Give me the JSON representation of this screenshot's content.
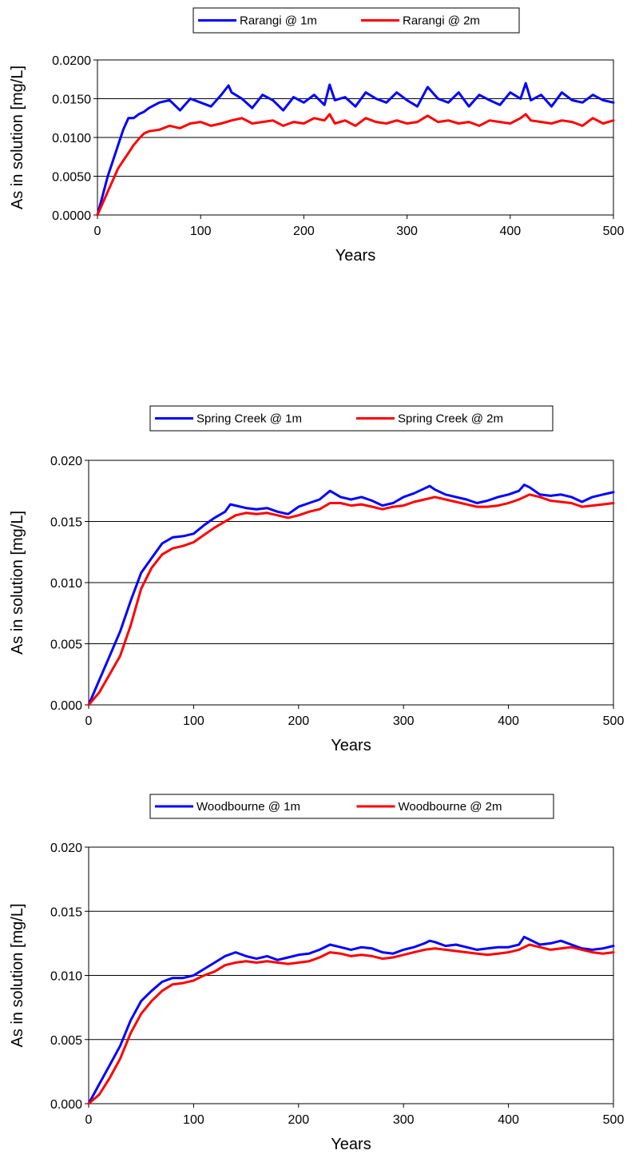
{
  "chart_data": [
    {
      "type": "line",
      "xlabel": "Years",
      "ylabel": "As in solution [mg/L]",
      "xlim": [
        0,
        500
      ],
      "ylim": [
        0,
        0.02
      ],
      "xticks": [
        "0",
        "100",
        "200",
        "300",
        "400",
        "500"
      ],
      "yticks": [
        "0.0000",
        "0.0050",
        "0.0100",
        "0.0150",
        "0.0200"
      ],
      "grid": "horizontal",
      "legend_position": "top-center",
      "series": [
        {
          "name": "Rarangi @ 1m",
          "color": "#0000ff",
          "x": [
            0,
            5,
            10,
            15,
            20,
            25,
            30,
            35,
            40,
            45,
            50,
            60,
            70,
            80,
            90,
            100,
            110,
            120,
            127,
            130,
            140,
            150,
            160,
            170,
            180,
            190,
            200,
            210,
            220,
            225,
            230,
            240,
            250,
            260,
            270,
            280,
            290,
            300,
            310,
            320,
            330,
            340,
            350,
            360,
            370,
            380,
            390,
            400,
            410,
            415,
            420,
            430,
            440,
            450,
            460,
            470,
            480,
            490,
            500
          ],
          "y": [
            0.0,
            0.0025,
            0.005,
            0.007,
            0.009,
            0.011,
            0.0125,
            0.0125,
            0.013,
            0.0133,
            0.0138,
            0.0145,
            0.0148,
            0.0135,
            0.015,
            0.0145,
            0.014,
            0.0155,
            0.0167,
            0.0158,
            0.015,
            0.0138,
            0.0155,
            0.0148,
            0.0135,
            0.0152,
            0.0145,
            0.0155,
            0.0142,
            0.0168,
            0.0148,
            0.0152,
            0.014,
            0.0158,
            0.015,
            0.0145,
            0.0158,
            0.0148,
            0.014,
            0.0165,
            0.015,
            0.0145,
            0.0158,
            0.014,
            0.0155,
            0.0148,
            0.0142,
            0.0158,
            0.015,
            0.017,
            0.0148,
            0.0155,
            0.014,
            0.0158,
            0.0148,
            0.0145,
            0.0155,
            0.0148,
            0.0145
          ]
        },
        {
          "name": "Rarangi @ 2m",
          "color": "#ff0000",
          "x": [
            0,
            5,
            10,
            15,
            20,
            25,
            30,
            35,
            40,
            45,
            50,
            60,
            70,
            80,
            90,
            100,
            110,
            120,
            130,
            140,
            150,
            160,
            170,
            180,
            190,
            200,
            210,
            220,
            225,
            230,
            240,
            250,
            260,
            270,
            280,
            290,
            300,
            310,
            320,
            330,
            340,
            350,
            360,
            370,
            380,
            390,
            400,
            410,
            415,
            420,
            430,
            440,
            450,
            460,
            470,
            480,
            490,
            500
          ],
          "y": [
            0.0,
            0.0015,
            0.003,
            0.0045,
            0.006,
            0.007,
            0.008,
            0.009,
            0.0098,
            0.0105,
            0.0108,
            0.011,
            0.0115,
            0.0112,
            0.0118,
            0.012,
            0.0115,
            0.0118,
            0.0122,
            0.0125,
            0.0118,
            0.012,
            0.0122,
            0.0115,
            0.012,
            0.0118,
            0.0125,
            0.0122,
            0.013,
            0.0118,
            0.0122,
            0.0115,
            0.0125,
            0.012,
            0.0118,
            0.0122,
            0.0118,
            0.012,
            0.0128,
            0.012,
            0.0122,
            0.0118,
            0.012,
            0.0115,
            0.0122,
            0.012,
            0.0118,
            0.0125,
            0.013,
            0.0122,
            0.012,
            0.0118,
            0.0122,
            0.012,
            0.0115,
            0.0125,
            0.0118,
            0.0122
          ]
        }
      ]
    },
    {
      "type": "line",
      "xlabel": "Years",
      "ylabel": "As in solution [mg/L]",
      "xlim": [
        0,
        500
      ],
      "ylim": [
        0,
        0.02
      ],
      "xticks": [
        "0",
        "100",
        "200",
        "300",
        "400",
        "500"
      ],
      "yticks": [
        "0.000",
        "0.005",
        "0.010",
        "0.015",
        "0.020"
      ],
      "grid": "horizontal",
      "legend_position": "top-center",
      "series": [
        {
          "name": "Spring Creek @ 1m",
          "color": "#0000ff",
          "x": [
            0,
            10,
            20,
            30,
            40,
            50,
            60,
            70,
            80,
            90,
            100,
            110,
            120,
            130,
            135,
            140,
            150,
            160,
            170,
            180,
            190,
            200,
            210,
            220,
            230,
            240,
            250,
            260,
            270,
            280,
            290,
            300,
            310,
            320,
            325,
            330,
            340,
            350,
            360,
            370,
            380,
            390,
            400,
            410,
            415,
            420,
            430,
            440,
            450,
            460,
            470,
            480,
            490,
            500
          ],
          "y": [
            0.0,
            0.002,
            0.004,
            0.006,
            0.0085,
            0.0108,
            0.012,
            0.0132,
            0.0137,
            0.0138,
            0.014,
            0.0147,
            0.0153,
            0.0158,
            0.0164,
            0.0163,
            0.0161,
            0.016,
            0.0161,
            0.0158,
            0.0156,
            0.0162,
            0.0165,
            0.0168,
            0.0175,
            0.017,
            0.0168,
            0.017,
            0.0167,
            0.0163,
            0.0165,
            0.017,
            0.0173,
            0.0177,
            0.0179,
            0.0176,
            0.0172,
            0.017,
            0.0168,
            0.0165,
            0.0167,
            0.017,
            0.0172,
            0.0175,
            0.018,
            0.0178,
            0.0172,
            0.0171,
            0.0172,
            0.017,
            0.0166,
            0.017,
            0.0172,
            0.0174
          ]
        },
        {
          "name": "Spring Creek @ 2m",
          "color": "#ff0000",
          "x": [
            0,
            10,
            20,
            30,
            40,
            50,
            60,
            70,
            80,
            90,
            100,
            110,
            120,
            130,
            140,
            150,
            160,
            170,
            180,
            190,
            200,
            210,
            220,
            230,
            240,
            250,
            260,
            270,
            280,
            290,
            300,
            310,
            320,
            330,
            340,
            350,
            360,
            370,
            380,
            390,
            400,
            410,
            420,
            430,
            440,
            450,
            460,
            470,
            480,
            490,
            500
          ],
          "y": [
            0.0,
            0.001,
            0.0025,
            0.004,
            0.0065,
            0.0095,
            0.0112,
            0.0123,
            0.0128,
            0.013,
            0.0133,
            0.0139,
            0.0145,
            0.015,
            0.0155,
            0.0157,
            0.0156,
            0.0157,
            0.0155,
            0.0153,
            0.0155,
            0.0158,
            0.016,
            0.0165,
            0.0165,
            0.0163,
            0.0164,
            0.0162,
            0.016,
            0.0162,
            0.0163,
            0.0166,
            0.0168,
            0.017,
            0.0168,
            0.0166,
            0.0164,
            0.0162,
            0.0162,
            0.0163,
            0.0165,
            0.0168,
            0.0172,
            0.017,
            0.0167,
            0.0166,
            0.0165,
            0.0162,
            0.0163,
            0.0164,
            0.0165
          ]
        }
      ]
    },
    {
      "type": "line",
      "xlabel": "Years",
      "ylabel": "As in solution [mg/L]",
      "xlim": [
        0,
        500
      ],
      "ylim": [
        0,
        0.02
      ],
      "xticks": [
        "0",
        "100",
        "200",
        "300",
        "400",
        "500"
      ],
      "yticks": [
        "0.000",
        "0.005",
        "0.010",
        "0.015",
        "0.020"
      ],
      "grid": "horizontal",
      "legend_position": "top-center",
      "series": [
        {
          "name": "Woodbourne  @ 1m",
          "color": "#0000ff",
          "x": [
            0,
            10,
            20,
            30,
            40,
            50,
            60,
            70,
            80,
            90,
            100,
            110,
            120,
            130,
            140,
            150,
            160,
            170,
            180,
            190,
            200,
            210,
            220,
            230,
            240,
            250,
            260,
            270,
            280,
            290,
            300,
            310,
            320,
            325,
            330,
            340,
            350,
            360,
            370,
            380,
            390,
            400,
            410,
            415,
            420,
            430,
            440,
            450,
            460,
            470,
            480,
            490,
            500
          ],
          "y": [
            0.0,
            0.0015,
            0.003,
            0.0045,
            0.0065,
            0.008,
            0.0088,
            0.0095,
            0.0098,
            0.0098,
            0.01,
            0.0105,
            0.011,
            0.0115,
            0.0118,
            0.0115,
            0.0113,
            0.0115,
            0.0112,
            0.0114,
            0.0116,
            0.0117,
            0.012,
            0.0124,
            0.0122,
            0.012,
            0.0122,
            0.0121,
            0.0118,
            0.0117,
            0.012,
            0.0122,
            0.0125,
            0.0127,
            0.0126,
            0.0123,
            0.0124,
            0.0122,
            0.012,
            0.0121,
            0.0122,
            0.0122,
            0.0124,
            0.013,
            0.0128,
            0.0124,
            0.0125,
            0.0127,
            0.0124,
            0.0121,
            0.012,
            0.0121,
            0.0123
          ]
        },
        {
          "name": "Woodbourne @ 2m",
          "color": "#ff0000",
          "x": [
            0,
            10,
            20,
            30,
            40,
            50,
            60,
            70,
            80,
            90,
            100,
            110,
            120,
            130,
            140,
            150,
            160,
            170,
            180,
            190,
            200,
            210,
            220,
            230,
            240,
            250,
            260,
            270,
            280,
            290,
            300,
            310,
            320,
            330,
            340,
            350,
            360,
            370,
            380,
            390,
            400,
            410,
            420,
            430,
            440,
            450,
            460,
            470,
            480,
            490,
            500
          ],
          "y": [
            0.0,
            0.0007,
            0.002,
            0.0035,
            0.0055,
            0.007,
            0.008,
            0.0088,
            0.0093,
            0.0094,
            0.0096,
            0.01,
            0.0103,
            0.0108,
            0.011,
            0.0111,
            0.011,
            0.0111,
            0.011,
            0.0109,
            0.011,
            0.0111,
            0.0114,
            0.0118,
            0.0117,
            0.0115,
            0.0116,
            0.0115,
            0.0113,
            0.0114,
            0.0116,
            0.0118,
            0.012,
            0.0121,
            0.012,
            0.0119,
            0.0118,
            0.0117,
            0.0116,
            0.0117,
            0.0118,
            0.012,
            0.0124,
            0.0122,
            0.012,
            0.0121,
            0.0122,
            0.012,
            0.0118,
            0.0117,
            0.0118
          ]
        }
      ]
    }
  ]
}
